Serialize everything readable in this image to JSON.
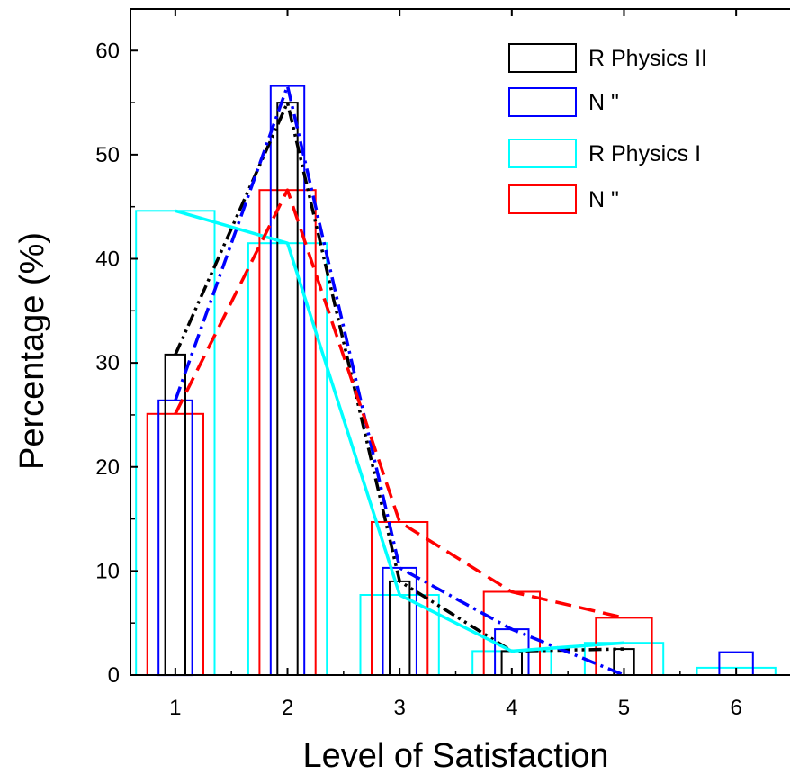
{
  "chart_data": {
    "type": "bar",
    "title": "",
    "xlabel": "Level of Satisfaction",
    "ylabel": "Percentage (%)",
    "categories": [
      1,
      2,
      3,
      4,
      5,
      6
    ],
    "xlim": [
      0.6,
      6.4
    ],
    "ylim": [
      0,
      64
    ],
    "yticks": [
      0,
      10,
      20,
      30,
      40,
      50,
      60
    ],
    "grid": false,
    "legend_position": "top-right",
    "series": [
      {
        "name": "R Physics II",
        "color": "#000000",
        "values": [
          30.8,
          55.0,
          9.0,
          2.3,
          2.5,
          null
        ],
        "line_style": "dash-dot-dot",
        "line_points": [
          [
            1,
            30.8
          ],
          [
            2,
            55.0
          ],
          [
            3,
            9.0
          ],
          [
            4,
            2.3
          ],
          [
            5,
            2.5
          ]
        ]
      },
      {
        "name": "N \"",
        "color": "#0000ff",
        "values": [
          26.4,
          56.6,
          10.3,
          4.4,
          null,
          2.2
        ],
        "line_style": "dash-dot",
        "line_points": [
          [
            1,
            26.4
          ],
          [
            2,
            56.6
          ],
          [
            3,
            10.3
          ],
          [
            4,
            4.4
          ],
          [
            5,
            0.0
          ]
        ]
      },
      {
        "name": "R Physics I",
        "color": "#00ffff",
        "values": [
          44.6,
          41.5,
          7.7,
          2.3,
          3.1,
          0.7
        ],
        "line_style": "solid",
        "line_points": [
          [
            1,
            44.6
          ],
          [
            2,
            41.5
          ],
          [
            3,
            7.7
          ],
          [
            4,
            2.3
          ],
          [
            5,
            3.1
          ]
        ]
      },
      {
        "name": "N \"",
        "color": "#ff0000",
        "values": [
          25.1,
          46.6,
          14.7,
          8.0,
          5.5,
          null
        ],
        "line_style": "dash",
        "line_points": [
          [
            1,
            25.1
          ],
          [
            2,
            46.6
          ],
          [
            3,
            14.7
          ],
          [
            4,
            8.0
          ],
          [
            5,
            5.5
          ]
        ]
      }
    ]
  }
}
